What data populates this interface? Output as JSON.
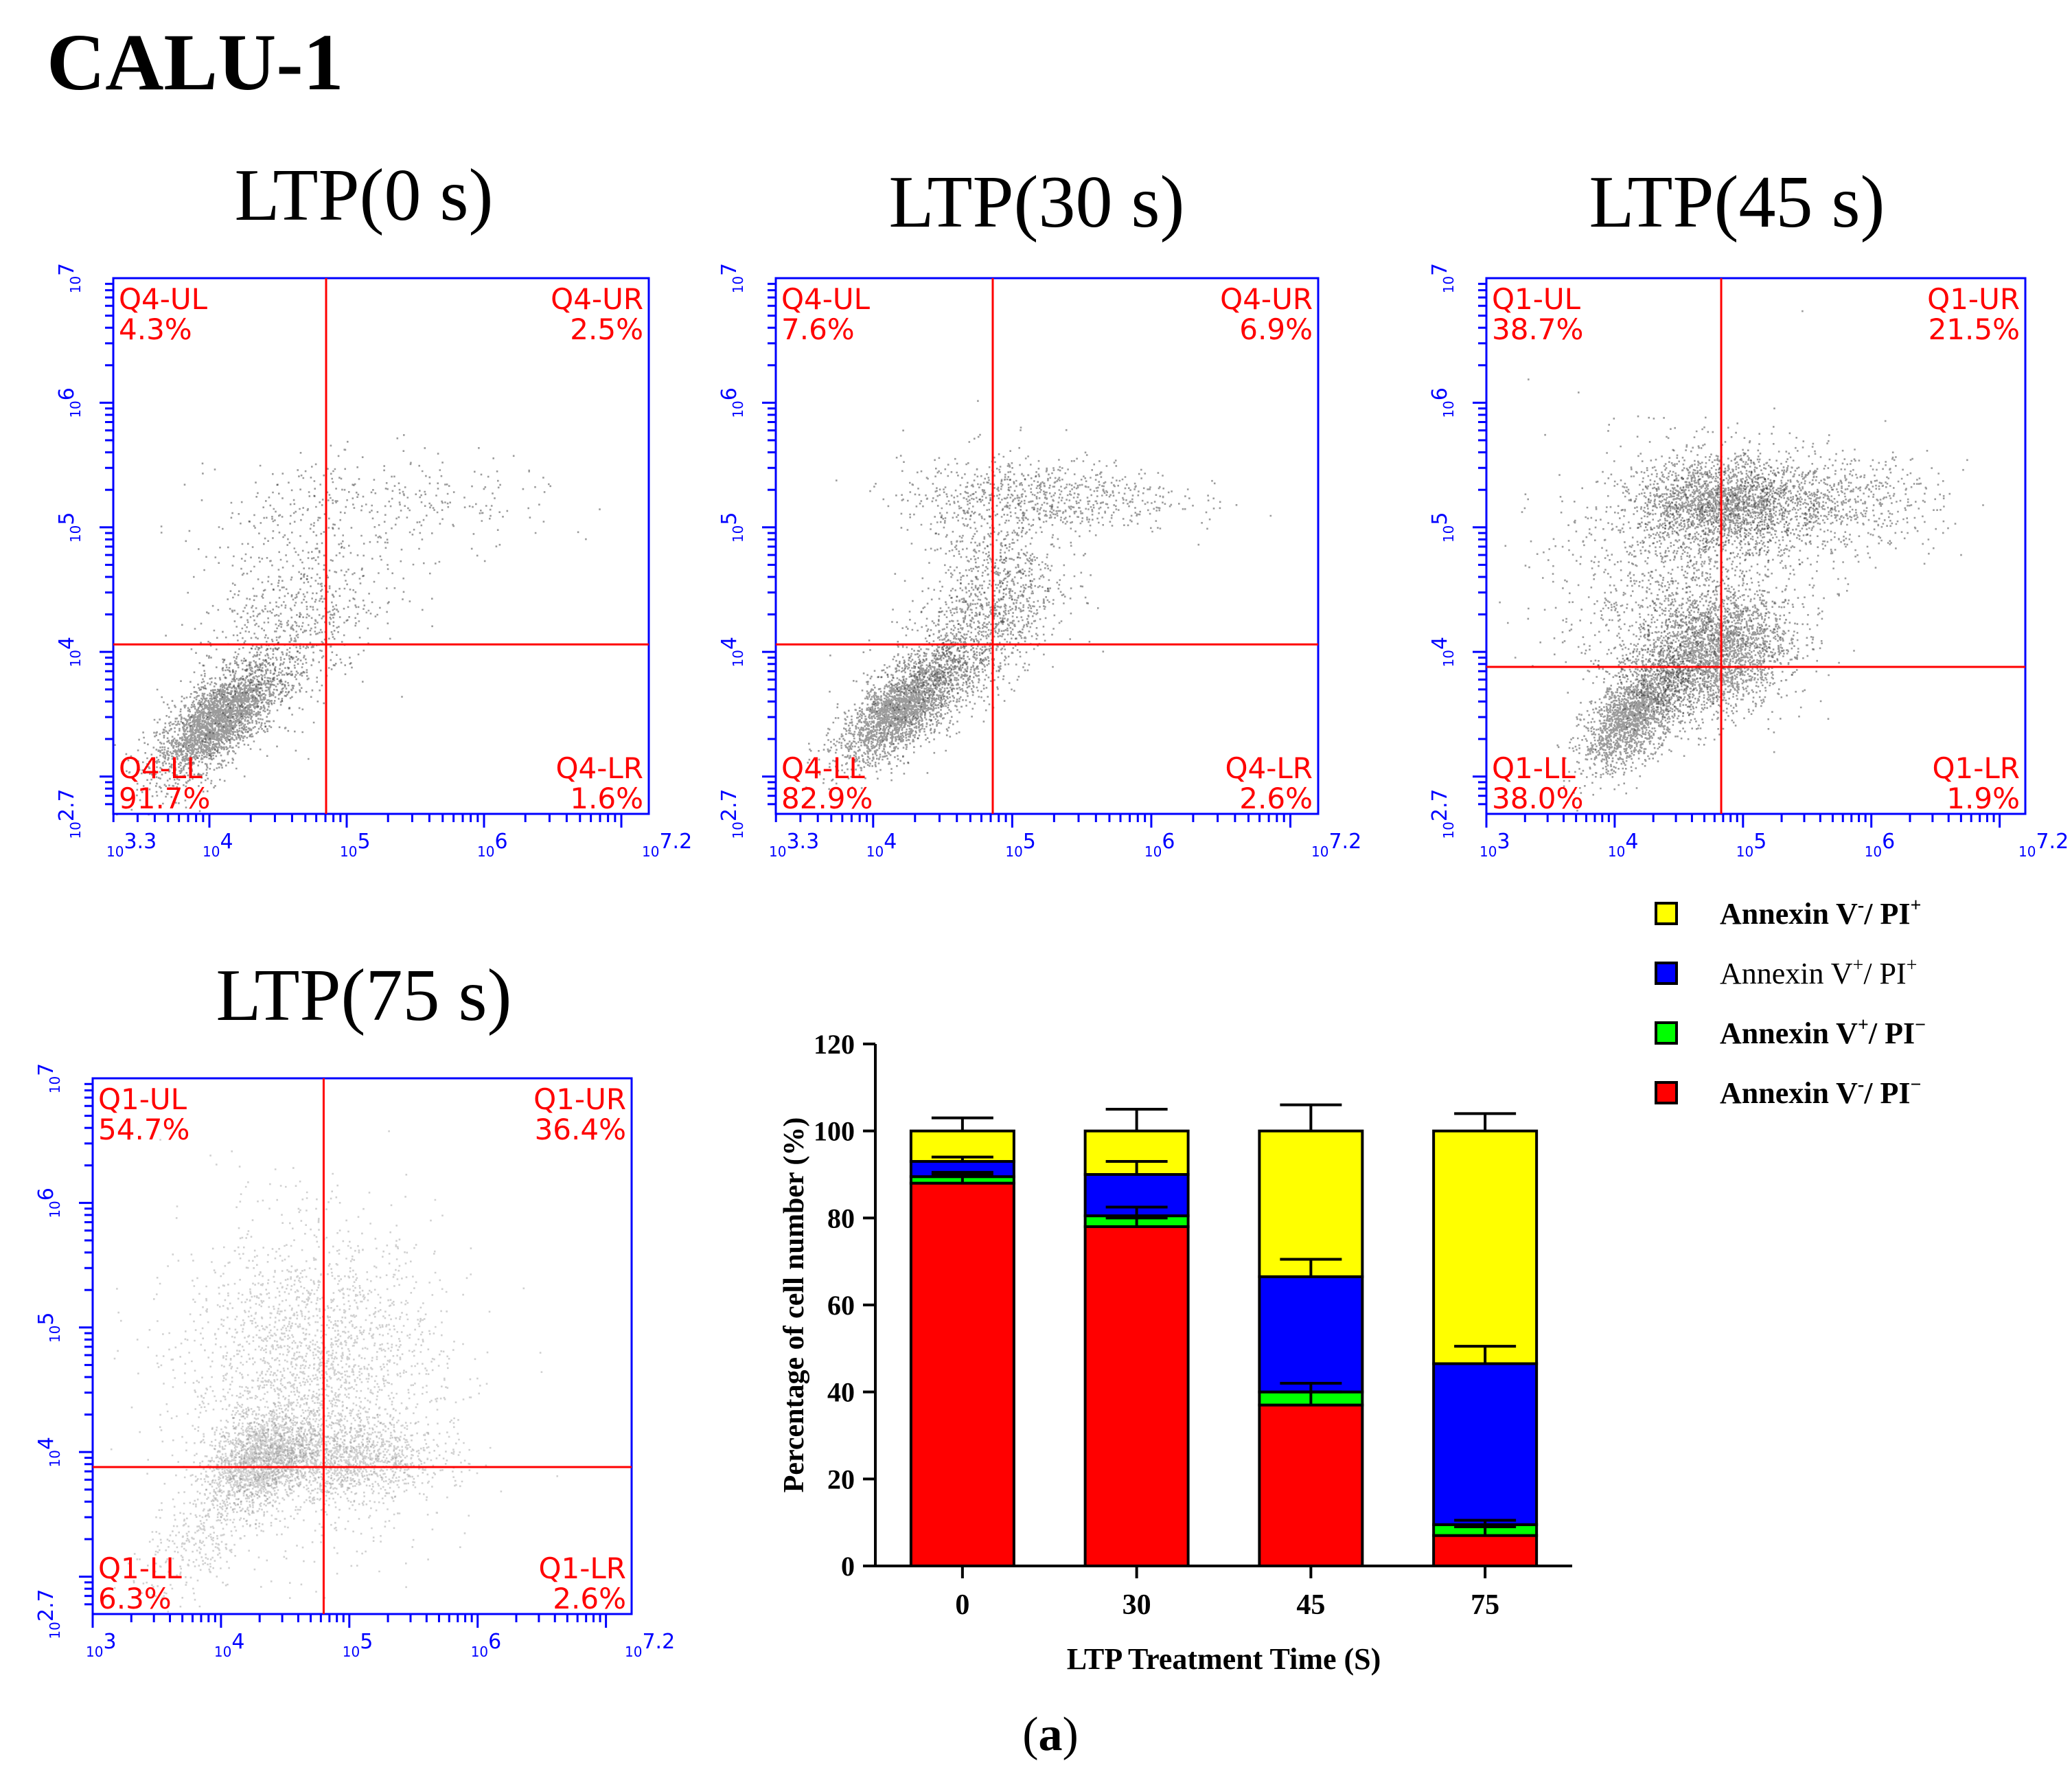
{
  "figure": {
    "cell_line": "CALU-1",
    "caption_letter": "a",
    "colors": {
      "axis_blue": "#0000ff",
      "gate_red": "#ff0000",
      "label_red": "#ff0000",
      "dot_dark": "#000000",
      "bar_yellow": "#ffff00",
      "bar_blue": "#0000ff",
      "bar_green": "#00ff00",
      "bar_red": "#ff0000"
    }
  },
  "chart_data": [
    {
      "type": "scatter",
      "title": "LTP(0 s)",
      "x_ticks": [
        "3.3",
        "4",
        "5",
        "6",
        "7.2"
      ],
      "y_ticks": [
        "2.7",
        "4",
        "5",
        "6",
        "7"
      ],
      "quadrant_gate": {
        "x": 4.85,
        "y": 4.06
      },
      "quadrants": [
        {
          "name": "Q4-UL",
          "pct": "4.3%"
        },
        {
          "name": "Q4-UR",
          "pct": "2.5%"
        },
        {
          "name": "Q4-LL",
          "pct": "91.7%"
        },
        {
          "name": "Q4-LR",
          "pct": "1.6%"
        }
      ]
    },
    {
      "type": "scatter",
      "title": "LTP(30 s)",
      "x_ticks": [
        "3.3",
        "4",
        "5",
        "6",
        "7.2"
      ],
      "y_ticks": [
        "2.7",
        "4",
        "5",
        "6",
        "7"
      ],
      "quadrant_gate": {
        "x": 4.86,
        "y": 4.06
      },
      "quadrants": [
        {
          "name": "Q4-UL",
          "pct": "7.6%"
        },
        {
          "name": "Q4-UR",
          "pct": "6.9%"
        },
        {
          "name": "Q4-LL",
          "pct": "82.9%"
        },
        {
          "name": "Q4-LR",
          "pct": "2.6%"
        }
      ]
    },
    {
      "type": "scatter",
      "title": "LTP(45 s)",
      "x_ticks": [
        "3",
        "4",
        "5",
        "6",
        "7.2"
      ],
      "y_ticks": [
        "2.7",
        "4",
        "5",
        "6",
        "7"
      ],
      "quadrant_gate": {
        "x": 4.83,
        "y": 3.88
      },
      "quadrants": [
        {
          "name": "Q1-UL",
          "pct": "38.7%"
        },
        {
          "name": "Q1-UR",
          "pct": "21.5%"
        },
        {
          "name": "Q1-LL",
          "pct": "38.0%"
        },
        {
          "name": "Q1-LR",
          "pct": "1.9%"
        }
      ]
    },
    {
      "type": "scatter",
      "title": "LTP(75 s)",
      "x_ticks": [
        "3",
        "4",
        "5",
        "6",
        "7.2"
      ],
      "y_ticks": [
        "2.7",
        "4",
        "5",
        "6",
        "7"
      ],
      "quadrant_gate": {
        "x": 4.8,
        "y": 3.88
      },
      "quadrants": [
        {
          "name": "Q1-UL",
          "pct": "54.7%"
        },
        {
          "name": "Q1-UR",
          "pct": "36.4%"
        },
        {
          "name": "Q1-LL",
          "pct": "6.3%"
        },
        {
          "name": "Q1-LR",
          "pct": "2.6%"
        }
      ]
    },
    {
      "type": "bar",
      "stacked": true,
      "categories": [
        "0",
        "30",
        "45",
        "75"
      ],
      "series": [
        {
          "name": "Annexin V⁻/ PI⁻",
          "values": [
            88,
            78,
            37,
            7
          ],
          "errors": [
            2,
            2,
            3,
            2
          ]
        },
        {
          "name": "Annexin V⁺/ PI⁻",
          "values": [
            1.5,
            2.5,
            3,
            2.5
          ],
          "errors": [
            1,
            2,
            2,
            1
          ]
        },
        {
          "name": "Annexin V⁺/ PI⁺",
          "values": [
            3.5,
            9.5,
            26.5,
            37
          ],
          "errors": [
            1,
            3,
            4,
            4
          ]
        },
        {
          "name": "Annexin V⁻/ PI⁺",
          "values": [
            7,
            10,
            33.5,
            53.5
          ],
          "errors": [
            3,
            5,
            6,
            4
          ]
        }
      ],
      "legend": [
        {
          "name": "Annexin V",
          "sup1": "-",
          "mid": "/ PI",
          "sup2": "+",
          "color": "#ffff00"
        },
        {
          "name": "Annexin V",
          "sup1": "+",
          "mid": "/ PI",
          "sup2": "+",
          "color": "#0000ff"
        },
        {
          "name": "Annexin V",
          "sup1": "+",
          "mid": "/ PI",
          "sup2": "−",
          "color": "#00ff00"
        },
        {
          "name": "Annexin V",
          "sup1": "-",
          "mid": "/ PI",
          "sup2": "−",
          "color": "#ff0000"
        }
      ],
      "ylim": [
        0,
        120
      ],
      "y_ticks": [
        0,
        20,
        40,
        60,
        80,
        100,
        120
      ],
      "xlabel": "LTP Treatment Time (S)",
      "ylabel": "Percentage of cell number (%)",
      "legend_position": "top-right"
    }
  ]
}
